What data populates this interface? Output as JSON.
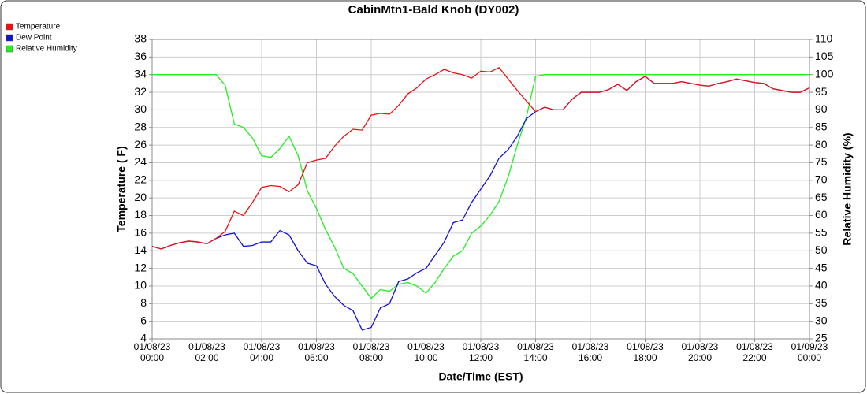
{
  "chart_data": {
    "type": "line",
    "title": "CabinMtn1-Bald Knob (DY002)",
    "x_label": "Date/Time (EST)",
    "y_label": "Temperature ( F)",
    "y2_label": "Relative Humidity (%)",
    "grid": true,
    "legend": "top-left",
    "x": [
      "01/08/23 00:00",
      "01/08/23 00:20",
      "01/08/23 00:40",
      "01/08/23 01:00",
      "01/08/23 01:20",
      "01/08/23 01:40",
      "01/08/23 02:00",
      "01/08/23 02:20",
      "01/08/23 02:40",
      "01/08/23 03:00",
      "01/08/23 03:20",
      "01/08/23 03:40",
      "01/08/23 04:00",
      "01/08/23 04:20",
      "01/08/23 04:40",
      "01/08/23 05:00",
      "01/08/23 05:20",
      "01/08/23 05:40",
      "01/08/23 06:00",
      "01/08/23 06:20",
      "01/08/23 06:40",
      "01/08/23 07:00",
      "01/08/23 07:20",
      "01/08/23 07:40",
      "01/08/23 08:00",
      "01/08/23 08:20",
      "01/08/23 08:40",
      "01/08/23 09:00",
      "01/08/23 09:20",
      "01/08/23 09:40",
      "01/08/23 10:00",
      "01/08/23 10:20",
      "01/08/23 10:40",
      "01/08/23 11:00",
      "01/08/23 11:20",
      "01/08/23 11:40",
      "01/08/23 12:00",
      "01/08/23 12:20",
      "01/08/23 12:40",
      "01/08/23 13:00",
      "01/08/23 13:20",
      "01/08/23 13:40",
      "01/08/23 14:00",
      "01/08/23 14:20",
      "01/08/23 14:40",
      "01/08/23 15:00",
      "01/08/23 15:20",
      "01/08/23 15:40",
      "01/08/23 16:00",
      "01/08/23 16:20",
      "01/08/23 16:40",
      "01/08/23 17:00",
      "01/08/23 17:20",
      "01/08/23 17:40",
      "01/08/23 18:00",
      "01/08/23 18:20",
      "01/08/23 18:40",
      "01/08/23 19:00",
      "01/08/23 19:20",
      "01/08/23 19:40",
      "01/08/23 20:00",
      "01/08/23 20:20",
      "01/08/23 20:40",
      "01/08/23 21:00",
      "01/08/23 21:20",
      "01/08/23 21:40",
      "01/08/23 22:00",
      "01/08/23 22:20",
      "01/08/23 22:40",
      "01/08/23 23:00",
      "01/08/23 23:20",
      "01/08/23 23:40",
      "01/09/23 00:00"
    ],
    "xlim": [
      "01/08/23 00:00",
      "01/09/23 00:00"
    ],
    "xticks": [
      "01/08/23 00:00",
      "01/08/23 02:00",
      "01/08/23 04:00",
      "01/08/23 06:00",
      "01/08/23 08:00",
      "01/08/23 10:00",
      "01/08/23 12:00",
      "01/08/23 14:00",
      "01/08/23 16:00",
      "01/08/23 18:00",
      "01/08/23 20:00",
      "01/08/23 22:00",
      "01/09/23 00:00"
    ],
    "ylim": [
      4,
      38
    ],
    "yticks": [
      4,
      6,
      8,
      10,
      12,
      14,
      16,
      18,
      20,
      22,
      24,
      26,
      28,
      30,
      32,
      34,
      36,
      38
    ],
    "y2lim": [
      25,
      110
    ],
    "y2ticks": [
      25,
      30,
      35,
      40,
      45,
      50,
      55,
      60,
      65,
      70,
      75,
      80,
      85,
      90,
      95,
      100,
      105,
      110
    ],
    "series": [
      {
        "name": "Temperature",
        "color": "#ee1111",
        "values": [
          14.5,
          14.2,
          14.6,
          14.9,
          15.1,
          15.0,
          14.8,
          15.4,
          16.2,
          18.5,
          18.0,
          19.5,
          21.2,
          21.4,
          21.3,
          20.7,
          21.5,
          24.0,
          24.3,
          24.5,
          25.9,
          27.0,
          27.8,
          27.7,
          29.4,
          29.6,
          29.5,
          30.5,
          31.8,
          32.5,
          33.5,
          34.0,
          34.6,
          34.2,
          34.0,
          33.6,
          34.4,
          34.3,
          34.8,
          33.5,
          32.2,
          31.0,
          29.8,
          30.3,
          30.0,
          30.0,
          31.2,
          32.0,
          32.0,
          32.0,
          32.3,
          32.9,
          32.2,
          33.2,
          33.8,
          33.0,
          33.0,
          33.0,
          33.2,
          33.0,
          32.8,
          32.7,
          33.0,
          33.2,
          33.5,
          33.3,
          33.1,
          33.0,
          32.4,
          32.2,
          32.0,
          32.0,
          32.5
        ]
      },
      {
        "name": "Dew Point",
        "color": "#1111dd",
        "values": [
          14.5,
          14.2,
          14.6,
          14.9,
          15.1,
          15.0,
          14.8,
          15.4,
          15.8,
          16.0,
          14.5,
          14.6,
          15.0,
          15.0,
          16.3,
          15.8,
          14.0,
          12.6,
          12.3,
          10.2,
          8.8,
          7.8,
          7.2,
          5.0,
          5.3,
          7.5,
          8.0,
          10.5,
          10.8,
          11.5,
          12.0,
          13.5,
          15.0,
          17.2,
          17.5,
          19.5,
          21.0,
          22.5,
          24.5,
          25.5,
          27.0,
          29.0,
          29.8,
          30.3,
          30.0,
          30.0,
          31.2,
          32.0,
          32.0,
          32.0,
          32.3,
          32.9,
          32.2,
          33.2,
          33.8,
          33.0,
          33.0,
          33.0,
          33.2,
          33.0,
          32.8,
          32.7,
          33.0,
          33.2,
          33.5,
          33.3,
          33.1,
          33.0,
          32.4,
          32.2,
          32.0,
          32.0,
          32.5
        ]
      },
      {
        "name": "Relative Humidity",
        "color": "#22ee22",
        "axis": "y2",
        "values": [
          100,
          100,
          100,
          100,
          100,
          100,
          100,
          100,
          97,
          86,
          85,
          82,
          77,
          76.5,
          79,
          82.5,
          77,
          67,
          62,
          56,
          51,
          45,
          43.5,
          40,
          36.5,
          39,
          38.5,
          40.5,
          41,
          40,
          38,
          41,
          45,
          48.5,
          50,
          55,
          57,
          60,
          64,
          71,
          80,
          88,
          99.5,
          100,
          100,
          100,
          100,
          100,
          100,
          100,
          100,
          100,
          100,
          100,
          100,
          100,
          100,
          100,
          100,
          100,
          100,
          100,
          100,
          100,
          100,
          100,
          100,
          100,
          100,
          100,
          100,
          100,
          100
        ]
      }
    ]
  }
}
